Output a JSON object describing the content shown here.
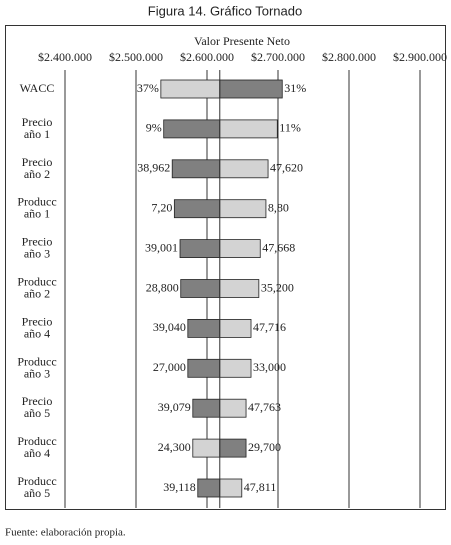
{
  "chart_data": {
    "type": "tornado",
    "title": "Figura 14. Gráfico Tornado",
    "xlabel": "Valor Presente Neto",
    "categories": [
      [
        "WACC"
      ],
      [
        "Precio",
        "año 1"
      ],
      [
        "Precio",
        "año 2"
      ],
      [
        "Producc",
        "año 1"
      ],
      [
        "Precio",
        "año 3"
      ],
      [
        "Producc",
        "año 2"
      ],
      [
        "Precio",
        "año 4"
      ],
      [
        "Producc",
        "año 3"
      ],
      [
        "Precio",
        "año 5"
      ],
      [
        "Producc",
        "año 4"
      ],
      [
        "Producc",
        "año 5"
      ]
    ],
    "base": 2618000,
    "series": [
      {
        "values": [
          2535000,
          2539000,
          2551000,
          2554000,
          2562000,
          2563000,
          2573000,
          2573000,
          2580000,
          2580000,
          2587000
        ],
        "input_labels": [
          "37%",
          "9%",
          "38,962",
          "7,20",
          "39,001",
          "28,800",
          "39,040",
          "27,000",
          "39,079",
          "24,300",
          "39,118"
        ],
        "colors": [
          "#d3d3d3",
          "#808080",
          "#808080",
          "#808080",
          "#808080",
          "#808080",
          "#808080",
          "#808080",
          "#808080",
          "#d3d3d3",
          "#808080"
        ]
      },
      {
        "values": [
          2706000,
          2699000,
          2686000,
          2683000,
          2675000,
          2673000,
          2662000,
          2662000,
          2655000,
          2655000,
          2649000
        ],
        "input_labels": [
          "31%",
          "11%",
          "47,620",
          "8,80",
          "47,668",
          "35,200",
          "47,716",
          "33,000",
          "47,763",
          "29,700",
          "47,811"
        ],
        "colors": [
          "#808080",
          "#d3d3d3",
          "#d3d3d3",
          "#d3d3d3",
          "#d3d3d3",
          "#d3d3d3",
          "#d3d3d3",
          "#d3d3d3",
          "#d3d3d3",
          "#808080",
          "#d3d3d3"
        ]
      }
    ],
    "xlim": [
      2400000,
      2900000
    ],
    "xticks": [
      {
        "value": 2400000,
        "label": "$2.400.000"
      },
      {
        "value": 2500000,
        "label": "$2.500.000"
      },
      {
        "value": 2600000,
        "label": "$2.600.000"
      },
      {
        "value": 2700000,
        "label": "$2.700.000"
      },
      {
        "value": 2800000,
        "label": "$2.800.000"
      },
      {
        "value": 2900000,
        "label": "$2.900.000"
      }
    ],
    "grid": true,
    "footnote": "Fuente: elaboración propia."
  }
}
